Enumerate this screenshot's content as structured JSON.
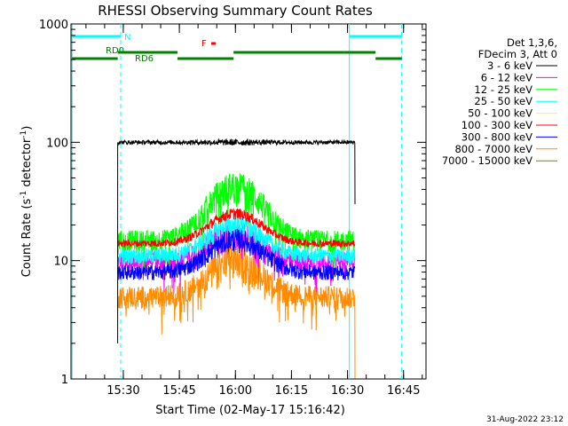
{
  "chart_data": {
    "type": "line",
    "title": "RHESSI Observing Summary Count Rates",
    "xlabel": "Start Time (02-May-17 15:16:42)",
    "ylabel": "Count Rate (s",
    "ylabel_sup1": "-1",
    "ylabel_mid": " detector",
    "ylabel_sup2": "-1",
    "ylabel_end": ")",
    "y_scale": "log",
    "ylim": [
      1,
      1000
    ],
    "y_ticks": [
      {
        "value": 1,
        "label": "1"
      },
      {
        "value": 10,
        "label": "10"
      },
      {
        "value": 100,
        "label": "100"
      },
      {
        "value": 1000,
        "label": "1000"
      }
    ],
    "x_range_minutes": [
      0,
      95
    ],
    "x_ticks": [
      {
        "t": 14,
        "label": "15:30"
      },
      {
        "t": 29,
        "label": "15:45"
      },
      {
        "t": 44,
        "label": "16:00"
      },
      {
        "t": 59,
        "label": "16:15"
      },
      {
        "t": 74,
        "label": "16:30"
      },
      {
        "t": 89,
        "label": "16:45"
      }
    ],
    "legend_header": [
      "Det 1,3,6,",
      "FDecim 3, Att 0"
    ],
    "series": [
      {
        "name": "3 - 6 keV",
        "color": "#000000",
        "t_start": 12.5,
        "t_end": 76,
        "base": 100,
        "peak": 0,
        "noise": 0.04
      },
      {
        "name": "6 - 12 keV",
        "color": "#ff00ff",
        "t_start": 12.5,
        "t_end": 76,
        "base": 10,
        "peak": 7,
        "noise": 0.18
      },
      {
        "name": "12 - 25 keV",
        "color": "#00ff00",
        "t_start": 12.5,
        "t_end": 76,
        "base": 15,
        "peak": 28,
        "noise": 0.2
      },
      {
        "name": "25 - 50 keV",
        "color": "#00ffff",
        "t_start": 12.5,
        "t_end": 76,
        "base": 11,
        "peak": 9,
        "noise": 0.15
      },
      {
        "name": "50 - 100 keV",
        "color": "#ffff00",
        "t_start": 12.5,
        "t_end": 76,
        "base": 0,
        "peak": 0,
        "noise": 0
      },
      {
        "name": "100 - 300 keV",
        "color": "#ff0000",
        "t_start": 12.5,
        "t_end": 76,
        "base": 14,
        "peak": 11,
        "noise": 0.07
      },
      {
        "name": "300 - 800 keV",
        "color": "#0000ff",
        "t_start": 12.5,
        "t_end": 76,
        "base": 8,
        "peak": 7,
        "noise": 0.15
      },
      {
        "name": "800 - 7000 keV",
        "color": "#ff8c00",
        "t_start": 12.5,
        "t_end": 76,
        "base": 5,
        "peak": 5,
        "noise": 0.22
      },
      {
        "name": "7000 - 15000 keV",
        "color": "#808000",
        "t_start": 12.5,
        "t_end": 76,
        "base": 0,
        "peak": 0,
        "noise": 0
      }
    ],
    "peak_time": 44,
    "peak_width": 9,
    "vertical_lines": [
      {
        "t": 0.3,
        "style": "solid",
        "color": "#00ffff"
      },
      {
        "t": 13.3,
        "style": "dashed",
        "color": "#00ffff"
      },
      {
        "t": 74.5,
        "style": "solid",
        "color": "#00ffff"
      },
      {
        "t": 88.5,
        "style": "dashed",
        "color": "#00ffff"
      }
    ],
    "night_bars": [
      {
        "t0": 0.3,
        "t1": 13.3
      },
      {
        "t0": 74.5,
        "t1": 88.5
      }
    ],
    "night_label": "N",
    "rd_bars": [
      {
        "t0": 0.3,
        "t1": 12.5
      },
      {
        "t0": 12.5,
        "t1": 28.5
      },
      {
        "t0": 28.5,
        "t1": 43.5
      },
      {
        "t0": 43.5,
        "t1": 73.0
      },
      {
        "t0": 73.0,
        "t1": 81.5
      },
      {
        "t0": 81.5,
        "t1": 88.5
      }
    ],
    "rd_labels": [
      "RD0",
      "RD6"
    ],
    "flare_label": "F",
    "footer_date": "31-Aug-2022 23:12"
  }
}
